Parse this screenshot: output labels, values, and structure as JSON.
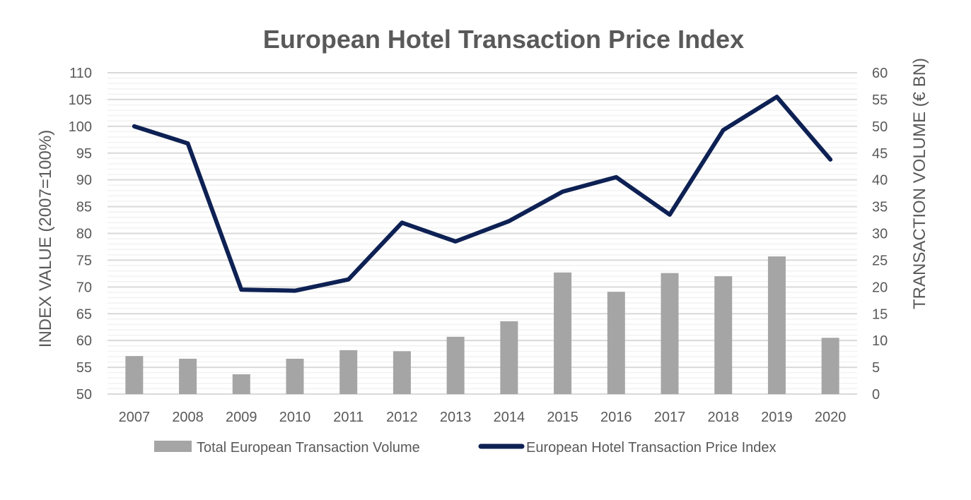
{
  "chart_data": {
    "type": "bar+line",
    "title": "European Hotel Transaction Price Index",
    "categories": [
      "2007",
      "2008",
      "2009",
      "2010",
      "2011",
      "2012",
      "2013",
      "2014",
      "2015",
      "2016",
      "2017",
      "2018",
      "2019",
      "2020"
    ],
    "ylabel_left": "INDEX VALUE (2007=100%)",
    "ylabel_right": "TRANSACTION VOLUME (€ BN)",
    "ylim_left": [
      50,
      110
    ],
    "ylim_right": [
      0,
      60
    ],
    "yticks_left": [
      "50",
      "55",
      "60",
      "65",
      "70",
      "75",
      "80",
      "85",
      "90",
      "95",
      "100",
      "105",
      "110"
    ],
    "yticks_right": [
      "0",
      "5",
      "10",
      "15",
      "20",
      "25",
      "30",
      "35",
      "40",
      "45",
      "50",
      "55",
      "60"
    ],
    "grid": true,
    "legend_placement": "bottom",
    "series": [
      {
        "name": "Total European Transaction Volume",
        "type": "bar",
        "axis": "right",
        "color": "#a5a5a5",
        "values": [
          7.1,
          6.6,
          3.7,
          6.6,
          8.2,
          8.0,
          10.7,
          13.6,
          22.7,
          19.1,
          22.6,
          22.0,
          25.7,
          10.5
        ]
      },
      {
        "name": "European Hotel Transaction Price Index",
        "type": "line",
        "axis": "left",
        "color": "#0e2154",
        "values": [
          100,
          96.8,
          69.5,
          69.3,
          71.4,
          82.0,
          78.5,
          82.3,
          87.8,
          90.5,
          83.5,
          99.3,
          105.5,
          93.8
        ]
      }
    ]
  }
}
